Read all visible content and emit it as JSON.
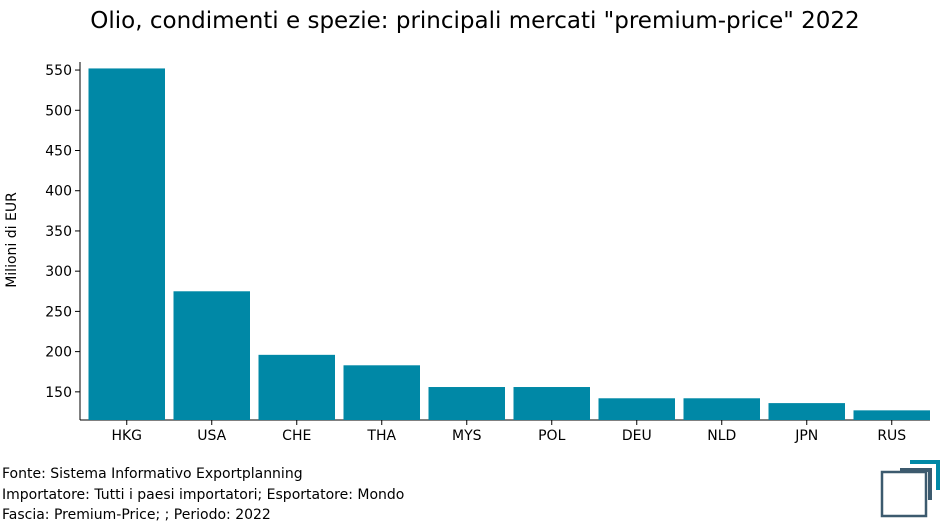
{
  "chart_data": {
    "type": "bar",
    "title": "Olio, condimenti e spezie: principali mercati \"premium-price\" 2022",
    "xlabel": "",
    "ylabel": "Milioni di EUR",
    "categories": [
      "HKG",
      "USA",
      "CHE",
      "THA",
      "MYS",
      "POL",
      "DEU",
      "NLD",
      "JPN",
      "RUS"
    ],
    "values": [
      552,
      275,
      196,
      183,
      156,
      156,
      142,
      142,
      136,
      127
    ],
    "ylim": [
      115,
      560
    ],
    "yticks": [
      150,
      200,
      250,
      300,
      350,
      400,
      450,
      500,
      550
    ],
    "grid": false,
    "legend": "none",
    "bar_color": "#0088a6"
  },
  "footer": {
    "source": "Fonte: Sistema Informativo Exportplanning",
    "importer": "Importatore: Tutti i paesi importatori; Esportatore: Mondo",
    "band": "Fascia: Premium-Price; ; Periodo: 2022"
  },
  "logo": {
    "icon": "exportplanning-logo-icon",
    "colors": {
      "teal": "#0088a6",
      "dark": "#3c5a6e"
    }
  }
}
